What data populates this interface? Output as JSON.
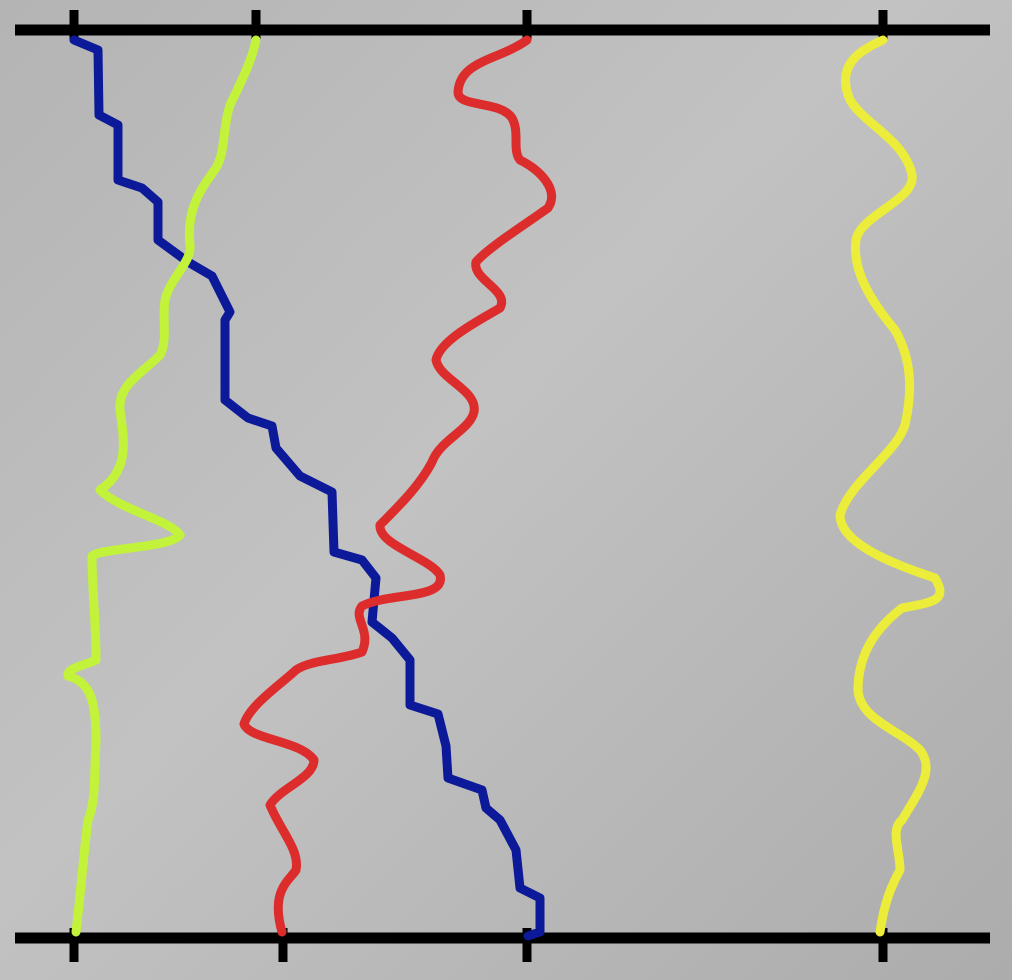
{
  "diagram": {
    "background_color": "#b8b8b8",
    "rail_color": "#000000",
    "top_rail_ticks": 4,
    "bottom_rail_ticks": 4,
    "paths": [
      {
        "id": "blue",
        "color": "#0c1a9a",
        "start_slot": 1,
        "end_slot": 3
      },
      {
        "id": "green",
        "color": "#c2f23a",
        "start_slot": 2,
        "end_slot": 1
      },
      {
        "id": "red",
        "color": "#dd2c2c",
        "start_slot": 3,
        "end_slot": 2
      },
      {
        "id": "yellow",
        "color": "#ecec3a",
        "start_slot": 4,
        "end_slot": 4
      }
    ]
  }
}
